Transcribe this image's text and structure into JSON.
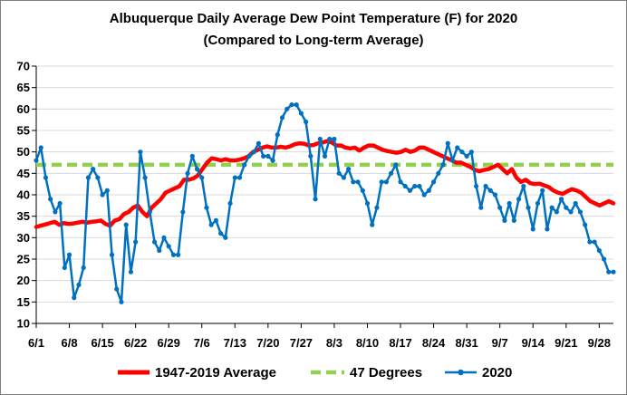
{
  "chart_data": {
    "type": "line",
    "title": "Albuquerque Daily Average Dew Point Temperature (F) for 2020",
    "subtitle": "(Compared to Long-term Average)",
    "xlabel": "",
    "ylabel": "",
    "ylim": [
      10,
      70
    ],
    "yticks": [
      10,
      15,
      20,
      25,
      30,
      35,
      40,
      45,
      50,
      55,
      60,
      65,
      70
    ],
    "x_tick_labels": [
      "6/1",
      "6/8",
      "6/15",
      "6/22",
      "6/29",
      "7/6",
      "7/13",
      "7/20",
      "7/27",
      "8/3",
      "8/10",
      "8/17",
      "8/24",
      "8/31",
      "9/7",
      "9/14",
      "9/21",
      "9/28"
    ],
    "x_tick_day_index": [
      0,
      7,
      14,
      21,
      28,
      35,
      42,
      49,
      56,
      63,
      70,
      77,
      84,
      91,
      98,
      105,
      112,
      119
    ],
    "grid": true,
    "legend_position": "bottom",
    "colors": {
      "average": "#ff0000",
      "reference": "#92d050",
      "year2020": "#0070c0",
      "grid": "#d9d9d9"
    },
    "series": [
      {
        "name": "1947-2019 Average",
        "style": "thick-line",
        "values": [
          32.5,
          32.8,
          33.1,
          33.4,
          33.7,
          33.0,
          33.4,
          33.2,
          33.3,
          33.5,
          33.7,
          33.5,
          33.7,
          33.8,
          34.0,
          33.2,
          32.8,
          34.0,
          34.3,
          35.5,
          36.0,
          37.0,
          37.5,
          36.0,
          35.0,
          37.0,
          38.0,
          39.0,
          40.5,
          41.0,
          41.5,
          42.0,
          43.5,
          43.5,
          43.8,
          44.5,
          46.0,
          47.5,
          48.5,
          48.3,
          48.0,
          48.3,
          48.0,
          48.0,
          48.2,
          48.5,
          49.0,
          50.0,
          50.5,
          51.0,
          51.3,
          51.0,
          51.0,
          51.2,
          51.0,
          51.3,
          51.8,
          52.0,
          51.9,
          51.5,
          51.6,
          52.0,
          52.2,
          52.5,
          52.2,
          51.5,
          51.5,
          51.0,
          50.8,
          51.0,
          50.3,
          51.0,
          51.5,
          51.5,
          51.0,
          50.5,
          50.2,
          50.0,
          49.8,
          50.0,
          50.5,
          50.0,
          50.3,
          51.0,
          51.0,
          50.5,
          50.0,
          49.5,
          49.0,
          48.5,
          48.0,
          47.5,
          47.5,
          47.0,
          46.5,
          45.8,
          45.5,
          45.8,
          46.0,
          46.5,
          47.0,
          46.0,
          45.0,
          46.0,
          44.0,
          43.0,
          43.5,
          42.7,
          42.5,
          42.6,
          42.2,
          41.8,
          41.0,
          40.5,
          40.2,
          40.8,
          41.3,
          41.0,
          40.5,
          39.5,
          38.5,
          38.0,
          37.5,
          38.0,
          38.5,
          38.0
        ]
      },
      {
        "name": "47 Degrees",
        "style": "dashed-line",
        "values": [
          47
        ]
      },
      {
        "name": "2020",
        "style": "line-with-markers",
        "values": [
          48,
          51,
          44,
          39,
          36,
          38,
          23,
          26,
          16,
          19,
          23,
          44,
          46,
          44,
          40,
          41,
          26,
          18,
          15,
          33,
          22,
          29,
          50,
          44,
          36,
          29,
          27,
          30,
          28,
          26,
          26,
          36,
          45,
          49,
          46,
          44,
          37,
          33,
          34,
          31,
          30,
          38,
          44,
          44,
          47,
          49,
          50,
          52,
          49,
          49,
          48,
          54,
          58,
          60,
          61,
          61,
          59,
          57,
          49,
          39,
          53,
          49,
          53,
          53,
          45,
          44,
          46,
          43,
          43,
          41,
          38,
          33,
          37,
          43,
          43,
          45,
          47,
          43,
          42,
          41,
          42,
          42,
          40,
          41,
          43,
          45,
          47,
          52,
          48,
          51,
          50,
          49,
          50,
          42,
          37,
          42,
          41,
          40,
          37,
          34,
          38,
          34,
          39,
          42,
          37,
          32,
          38,
          41,
          32,
          37,
          36,
          39,
          37,
          36,
          38,
          36,
          33,
          29,
          29,
          27,
          25,
          22,
          22
        ]
      }
    ]
  }
}
